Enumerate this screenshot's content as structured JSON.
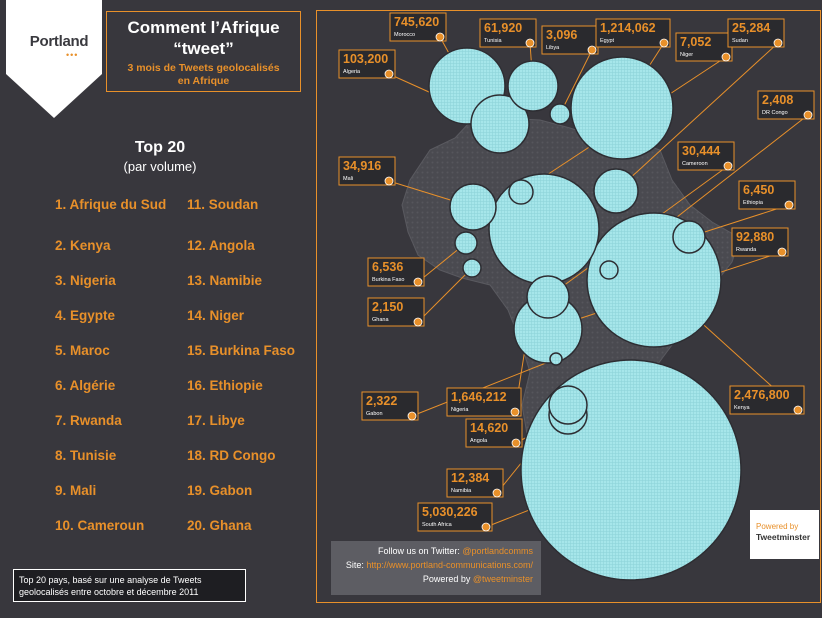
{
  "brand": {
    "logo_text": "Portland",
    "logo_dots": "•••"
  },
  "title": {
    "main_line1": "Comment l’Afrique",
    "main_line2": "“tweet”",
    "subtitle_line1": "3 mois de Tweets geolocalisés",
    "subtitle_line2": "en Afrique"
  },
  "ranking": {
    "title": "Top 20",
    "subtitle": "(par volume)",
    "items": [
      "1. Afrique du Sud",
      "2. Kenya",
      "3. Nigeria",
      "4. Egypte",
      "5. Maroc",
      "6. Algérie",
      "7. Rwanda",
      "8. Tunisie",
      "9. Mali",
      "10. Cameroun",
      "11. Soudan",
      "12. Angola",
      "13. Namibie",
      "14. Niger",
      "15. Burkina Faso",
      "16. Ethiopie",
      "17. Libye",
      "18. RD Congo",
      "19. Gabon",
      "20. Ghana"
    ]
  },
  "footnote": {
    "line1": "Top 20 pays, basé sur une analyse de Tweets",
    "line2": "geolocalisés entre octobre et décembre 2011"
  },
  "follow": {
    "twitter_prefix": "Follow us on Twitter: ",
    "twitter_handle": "@portlandcomms",
    "site_prefix": "Site: ",
    "site_url": "http://www.portland-communications.com/",
    "powered_prefix": "Powered by ",
    "powered_handle": "@tweetminster"
  },
  "powered_badge": {
    "line1": "Powered by",
    "line2": "Tweetminster"
  },
  "colors": {
    "background": "#38373d",
    "accent": "#e8902a",
    "bubble": "#a6e6ea",
    "continent": "#4a4a50"
  },
  "chart_data": {
    "type": "bubble-map",
    "series_name": "Tweets geolocalisés",
    "points": [
      {
        "label": "745,620",
        "country": "Morocco",
        "value": 745620
      },
      {
        "label": "61,920",
        "country": "Tunisia",
        "value": 61920
      },
      {
        "label": "3,096",
        "country": "Libya",
        "value": 3096
      },
      {
        "label": "1,214,062",
        "country": "Egypt",
        "value": 1214062
      },
      {
        "label": "103,200",
        "country": "Algeria",
        "value": 103200
      },
      {
        "label": "7,052",
        "country": "Niger",
        "value": 7052
      },
      {
        "label": "25,284",
        "country": "Sudan",
        "value": 25284
      },
      {
        "label": "2,408",
        "country": "DR Congo",
        "value": 2408
      },
      {
        "label": "34,916",
        "country": "Mali",
        "value": 34916
      },
      {
        "label": "30,444",
        "country": "Cameroon",
        "value": 30444
      },
      {
        "label": "6,450",
        "country": "Ethiopia",
        "value": 6450
      },
      {
        "label": "92,880",
        "country": "Rwanda",
        "value": 92880
      },
      {
        "label": "6,536",
        "country": "Burkina Faso",
        "value": 6536
      },
      {
        "label": "2,150",
        "country": "Ghana",
        "value": 2150
      },
      {
        "label": "2,322",
        "country": "Gabon",
        "value": 2322
      },
      {
        "label": "1,646,212",
        "country": "Nigeria",
        "value": 1646212
      },
      {
        "label": "2,476,800",
        "country": "Kenya",
        "value": 2476800
      },
      {
        "label": "14,620",
        "country": "Angola",
        "value": 14620
      },
      {
        "label": "12,384",
        "country": "Namibia",
        "value": 12384
      },
      {
        "label": "5,030,226",
        "country": "South Africa",
        "value": 5030226
      }
    ]
  }
}
